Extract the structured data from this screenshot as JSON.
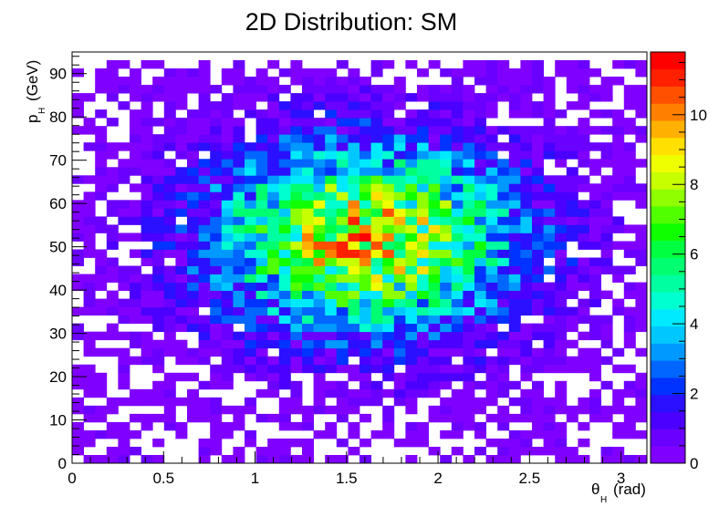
{
  "chart_data": {
    "type": "heatmap",
    "title": "2D Distribution: SM",
    "xlabel": {
      "main": "θ",
      "sub": "H",
      "unit": "(rad)"
    },
    "ylabel": {
      "main": "p",
      "sub": "H",
      "unit": "(GeV)"
    },
    "xlim": [
      0,
      3.1416
    ],
    "ylim": [
      0,
      95
    ],
    "x_bins": 50,
    "y_bins": 50,
    "zlim": [
      0,
      11.8
    ],
    "x_ticks": [
      "0",
      "0.5",
      "1",
      "1.5",
      "2",
      "2.5",
      "3"
    ],
    "y_ticks": [
      "0",
      "10",
      "20",
      "30",
      "40",
      "50",
      "60",
      "70",
      "80",
      "90"
    ],
    "z_ticks": [
      "0",
      "2",
      "4",
      "6",
      "8",
      "10"
    ],
    "palette_colors": [
      "#8000ff",
      "#6a00ff",
      "#4b00ff",
      "#2a10ff",
      "#0033ff",
      "#0066ff",
      "#0099ff",
      "#00c8ff",
      "#00eaff",
      "#00ffd0",
      "#00ffa0",
      "#00ff70",
      "#00ff40",
      "#10ff00",
      "#50ff00",
      "#90ff00",
      "#c8ff00",
      "#f0ff00",
      "#ffe000",
      "#ffb000",
      "#ff8000",
      "#ff5000",
      "#ff2000",
      "#ff0000"
    ],
    "density_model": {
      "description": "Counts peak near theta 1.6 rad, pH 52 GeV",
      "peak_theta": 1.6,
      "peak_p": 52,
      "peak_value": 8.5,
      "theta_width": 1.0,
      "p_width": 24,
      "p_min": 4,
      "p_max": 93.5
    },
    "grid": false,
    "legend": "color-scale-right"
  }
}
